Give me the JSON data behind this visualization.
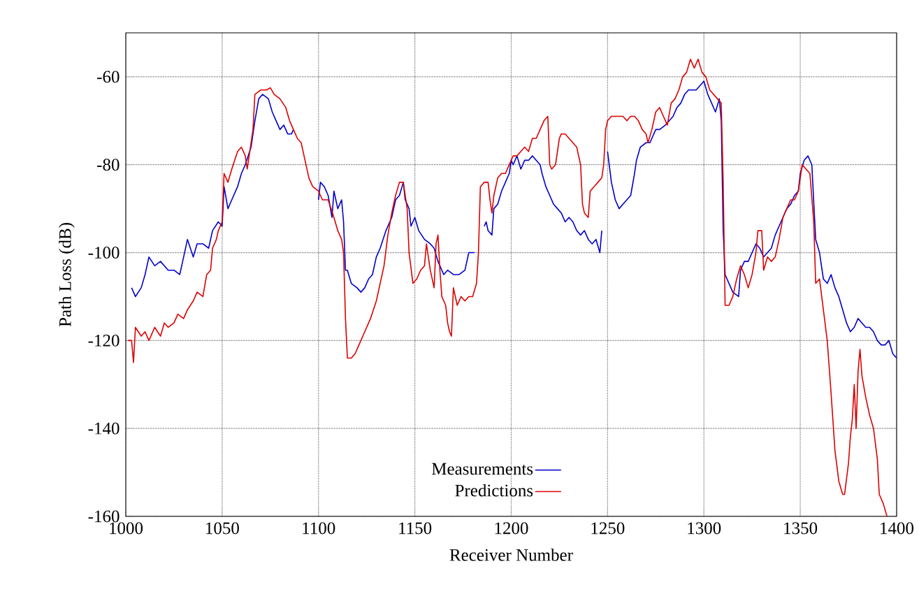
{
  "chart_data": {
    "type": "line",
    "xlabel": "Receiver Number",
    "ylabel": "Path Loss (dB)",
    "xlim": [
      1000,
      1400
    ],
    "ylim": [
      -160,
      -50
    ],
    "xticks": [
      1000,
      1050,
      1100,
      1150,
      1200,
      1250,
      1300,
      1350,
      1400
    ],
    "yticks": [
      -160,
      -140,
      -120,
      -100,
      -80,
      -60
    ],
    "grid": true,
    "legend": "bottom",
    "marker": "none",
    "line_style": "solid",
    "series": [
      {
        "name": "Measurements",
        "color": "#0000cc",
        "x": [
          1003,
          1005,
          1008,
          1010,
          1012,
          1015,
          1018,
          1022,
          1025,
          1028,
          1030,
          1032,
          1035,
          1037,
          1040,
          1043,
          1045,
          1048,
          1050,
          1051,
          1053,
          1055,
          1058,
          1060,
          1062,
          1065,
          1067,
          1069,
          1071,
          1074,
          1076,
          1078,
          1080,
          1082,
          1084,
          1086,
          1087,
          1094,
          1100,
          1101,
          1103,
          1105,
          1107,
          1108,
          1110,
          1112,
          1113,
          1114,
          1115,
          1117,
          1120,
          1122,
          1124,
          1126,
          1128,
          1130,
          1132,
          1135,
          1138,
          1140,
          1142,
          1144,
          1145,
          1147,
          1148,
          1150,
          1152,
          1155,
          1158,
          1160,
          1162,
          1165,
          1167,
          1170,
          1173,
          1176,
          1178,
          1181,
          1183,
          1186,
          1187,
          1188,
          1190,
          1191,
          1193,
          1195,
          1197,
          1199,
          1200,
          1201,
          1203,
          1205,
          1207,
          1209,
          1211,
          1213,
          1215,
          1216,
          1218,
          1220,
          1222,
          1224,
          1226,
          1228,
          1230,
          1232,
          1234,
          1236,
          1238,
          1240,
          1242,
          1244,
          1246,
          1247,
          1248,
          1250,
          1252,
          1254,
          1256,
          1258,
          1260,
          1262,
          1264,
          1265,
          1267,
          1270,
          1272,
          1275,
          1277,
          1280,
          1282,
          1284,
          1286,
          1288,
          1290,
          1292,
          1294,
          1296,
          1298,
          1300,
          1302,
          1304,
          1306,
          1308,
          1309,
          1310,
          1311,
          1313,
          1315,
          1318,
          1319,
          1321,
          1323,
          1325,
          1327,
          1329,
          1331,
          1333,
          1335,
          1337,
          1339,
          1341,
          1343,
          1345,
          1347,
          1349,
          1350,
          1352,
          1354,
          1356,
          1358,
          1360,
          1362,
          1364,
          1366,
          1368,
          1370,
          1372,
          1374,
          1376,
          1378,
          1380,
          1382,
          1384,
          1386,
          1388,
          1390,
          1392,
          1394,
          1396,
          1398,
          1400
        ],
        "values": [
          -108,
          -110,
          -108,
          -105,
          -101,
          -103,
          -102,
          -104,
          -104,
          -105,
          -101,
          -97,
          -101,
          -98,
          -98,
          -99,
          -95,
          -93,
          -94,
          -85,
          -90,
          -88,
          -85,
          -82,
          -80,
          -76,
          -70,
          -65,
          -64,
          -65,
          -68,
          -70,
          -72,
          -71,
          -73,
          -73,
          -72,
          null,
          -88,
          -84,
          -85,
          -87,
          -92,
          -86,
          -90,
          -88,
          -93,
          -104,
          -104,
          -107,
          -108,
          -109,
          -108,
          -106,
          -105,
          -101,
          -99,
          -95,
          -92,
          -88,
          -87,
          -84,
          -88,
          -90,
          -94,
          -92,
          -95,
          -97,
          -98,
          -99,
          -102,
          -105,
          -104,
          -105,
          -105,
          -104,
          -100,
          -100,
          null,
          -94,
          -93,
          -95,
          -96,
          -90,
          -89,
          -86,
          -84,
          -82,
          -79,
          -80,
          -78,
          -81,
          -79,
          -79,
          -78,
          -79,
          -80,
          -82,
          -85,
          -87,
          -89,
          -90,
          -91,
          -93,
          -92,
          -93,
          -95,
          -96,
          -95,
          -97,
          -98,
          -97,
          -100,
          -95,
          null,
          -77,
          -84,
          -88,
          -90,
          -89,
          -88,
          -87,
          -82,
          -79,
          -76,
          -75,
          -75,
          -72,
          -72,
          -71,
          -70,
          -69,
          -67,
          -66,
          -64,
          -63,
          -63,
          -63,
          -62,
          -61,
          -64,
          -66,
          -68,
          -65,
          -70,
          -95,
          -105,
          -107,
          -109,
          -110,
          -104,
          -102,
          -102,
          -100,
          -98,
          -99,
          -101,
          -100,
          -99,
          -96,
          -94,
          -92,
          -90,
          -89,
          -87,
          -86,
          -82,
          -79,
          -78,
          -80,
          -97,
          -100,
          -106,
          -107,
          -105,
          -108,
          -110,
          -113,
          -116,
          -118,
          -117,
          -115,
          -116,
          -117,
          -117,
          -118,
          -120,
          -121,
          -121,
          -120,
          -123,
          -124
        ]
      },
      {
        "name": "Predictions",
        "color": "#dd0000",
        "x": [
          1001,
          1003,
          1004,
          1005,
          1008,
          1010,
          1012,
          1015,
          1018,
          1020,
          1022,
          1025,
          1027,
          1030,
          1032,
          1035,
          1037,
          1040,
          1042,
          1044,
          1045,
          1047,
          1048,
          1050,
          1051,
          1053,
          1055,
          1058,
          1060,
          1062,
          1063,
          1064,
          1066,
          1067,
          1070,
          1073,
          1075,
          1077,
          1080,
          1083,
          1085,
          1087,
          1089,
          1091,
          1093,
          1095,
          1097,
          1100,
          1102,
          1105,
          1108,
          1110,
          1112,
          1113,
          1114,
          1115,
          1117,
          1119,
          1121,
          1124,
          1127,
          1130,
          1132,
          1134,
          1136,
          1138,
          1140,
          1142,
          1144,
          1146,
          1147,
          1149,
          1151,
          1153,
          1155,
          1156,
          1158,
          1160,
          1161,
          1162,
          1163,
          1164,
          1166,
          1167,
          1168,
          1169,
          1170,
          1172,
          1174,
          1176,
          1178,
          1180,
          1182,
          1183,
          1184,
          1186,
          1188,
          1189,
          1190,
          1191,
          1193,
          1195,
          1197,
          1199,
          1201,
          1203,
          1205,
          1207,
          1209,
          1211,
          1213,
          1215,
          1217,
          1219,
          1220,
          1221,
          1223,
          1225,
          1226,
          1228,
          1230,
          1232,
          1234,
          1236,
          1237,
          1238,
          1240,
          1241,
          1243,
          1245,
          1247,
          1248,
          1249,
          1250,
          1252,
          1255,
          1258,
          1260,
          1262,
          1264,
          1266,
          1268,
          1270,
          1271,
          1273,
          1275,
          1277,
          1279,
          1281,
          1283,
          1285,
          1287,
          1289,
          1291,
          1293,
          1295,
          1297,
          1299,
          1301,
          1303,
          1305,
          1307,
          1309,
          1310,
          1311,
          1313,
          1315,
          1317,
          1319,
          1321,
          1323,
          1325,
          1327,
          1328,
          1330,
          1331,
          1333,
          1335,
          1337,
          1339,
          1341,
          1343,
          1345,
          1347,
          1349,
          1351,
          1353,
          1355,
          1357,
          1358,
          1360,
          1362,
          1364,
          1366,
          1368,
          1370,
          1372,
          1373,
          1375,
          1376,
          1377,
          1378,
          1379,
          1380,
          1381,
          1382,
          1384,
          1386,
          1388,
          1390,
          1391,
          1393,
          1395
        ],
        "values": [
          -120,
          -120,
          -125,
          -117,
          -119,
          -118,
          -120,
          -117,
          -119,
          -116,
          -117,
          -116,
          -114,
          -115,
          -113,
          -111,
          -109,
          -110,
          -105,
          -104,
          -99,
          -97,
          -95,
          -93,
          -82,
          -84,
          -81,
          -77,
          -76,
          -78,
          -81,
          -78,
          -72,
          -64,
          -63,
          -63,
          -62.5,
          -64,
          -65,
          -67,
          -70,
          -72,
          -74,
          -75,
          -79,
          -83,
          -85,
          -86,
          -88,
          -88,
          -92,
          -95,
          -97,
          -100,
          -115,
          -124,
          -124,
          -123,
          -121,
          -118,
          -115,
          -111,
          -107,
          -103,
          -96,
          -91,
          -87,
          -84,
          -84,
          -90,
          -100,
          -107,
          -106,
          -104,
          -103,
          -98,
          -104,
          -108,
          -98,
          -96,
          -104,
          -110,
          -112,
          -116,
          -118,
          -119,
          -108,
          -112,
          -110,
          -111,
          -110,
          -110,
          -107,
          -100,
          -85,
          -84,
          -84,
          -88,
          -91,
          -87,
          -83,
          -82,
          -82,
          -80,
          -78,
          -78,
          -77,
          -76,
          -77,
          -74,
          -74,
          -72,
          -70,
          -69,
          -80,
          -81,
          -80,
          -74,
          -73,
          -73,
          -74,
          -75,
          -76,
          -80,
          -89,
          -91,
          -92,
          -86,
          -85,
          -84,
          -83,
          -80,
          -72,
          -70,
          -69,
          -69,
          -69,
          -70,
          -69,
          -69,
          -70,
          -72,
          -73,
          -75,
          -72,
          -68,
          -67,
          -69,
          -71,
          -66,
          -65,
          -63,
          -60,
          -59,
          -56,
          -58,
          -56,
          -59,
          -60,
          -63,
          -64,
          -65,
          -66,
          -84,
          -112,
          -112,
          -110,
          -106,
          -103,
          -105,
          -108,
          -105,
          -100,
          -95,
          -95,
          -104,
          -101,
          -102,
          -101,
          -97,
          -92,
          -90,
          -88,
          -88,
          -86,
          -80,
          -81,
          -82,
          -93,
          -107,
          -106,
          -113,
          -120,
          -132,
          -145,
          -152,
          -155,
          -155,
          -148,
          -142,
          -138,
          -130,
          -140,
          -127,
          -122,
          -128,
          -133,
          -137,
          -140,
          -147,
          -155,
          -157,
          -160
        ]
      }
    ]
  }
}
